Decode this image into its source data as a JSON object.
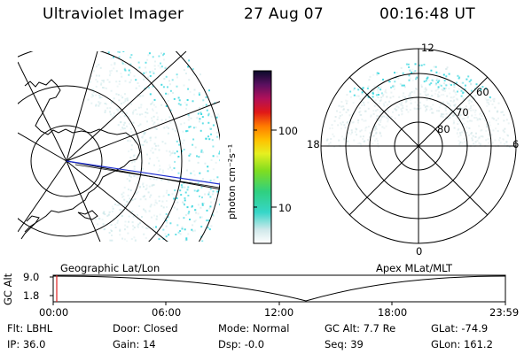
{
  "header": {
    "instrument": "Ultraviolet Imager",
    "date": "27 Aug 07",
    "time": "00:16:48 UT"
  },
  "colorbar": {
    "unit_label": "photon cm⁻²s⁻¹",
    "ticks": [
      {
        "label": "100",
        "value": 100
      },
      {
        "label": "10",
        "value": 10
      }
    ]
  },
  "polar_plot": {
    "mlt_labels": {
      "top": "12",
      "right": "6",
      "bottom": "0",
      "left": "18"
    },
    "mlat_labels": [
      "60",
      "70",
      "80"
    ]
  },
  "altitude_plot": {
    "left_label": "Geographic Lat/Lon",
    "right_label": "Apex MLat/MLT",
    "y_title": "GC Alt",
    "y_ticks": [
      "9.0",
      "1.8"
    ],
    "x_ticks": [
      "00:00",
      "06:00",
      "12:00",
      "18:00",
      "23:59"
    ]
  },
  "status": {
    "row1": [
      {
        "key": "Flt:",
        "value": "LBHL"
      },
      {
        "key": "Door:",
        "value": "Closed"
      },
      {
        "key": "Mode:",
        "value": "Normal"
      },
      {
        "key": "GC Alt:",
        "value": "7.7 Re"
      },
      {
        "key": "GLat:",
        "value": "-74.9"
      }
    ],
    "row2": [
      {
        "key": "IP:",
        "value": "36.0"
      },
      {
        "key": "Gain:",
        "value": "14"
      },
      {
        "key": "Dsp:",
        "value": "-0.0"
      },
      {
        "key": "Seq:",
        "value": "39"
      },
      {
        "key": "GLon:",
        "value": "161.2"
      }
    ]
  },
  "colors": {
    "aurora": "#3fd8e0",
    "track": "#2030d0",
    "marker": "#e02020"
  }
}
